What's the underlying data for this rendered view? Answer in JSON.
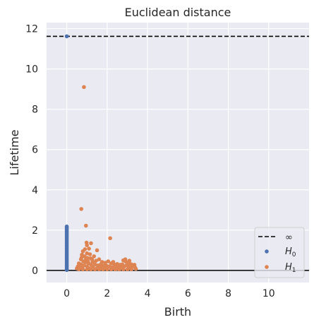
{
  "chart_data": {
    "type": "scatter",
    "title": "Euclidean distance",
    "xlabel": "Birth",
    "ylabel": "Lifetime",
    "xlim": [
      -1,
      12
    ],
    "ylim": [
      -0.6,
      12.3
    ],
    "xticks": [
      0,
      2,
      4,
      6,
      8,
      10
    ],
    "yticks": [
      0,
      2,
      4,
      6,
      8,
      10,
      12
    ],
    "xtick_labels": [
      "0",
      "2",
      "4",
      "6",
      "8",
      "10"
    ],
    "ytick_labels": [
      "0",
      "2",
      "4",
      "6",
      "8",
      "10",
      "12"
    ],
    "grid": true,
    "legend_position": "lower-right",
    "infinity_line": {
      "label": "∞",
      "y": 11.62,
      "style": "dashed",
      "color": "#000000"
    },
    "zero_line": {
      "y": 0,
      "color": "#000000"
    },
    "series": [
      {
        "name": "H0",
        "label_main": "H",
        "label_sub": "0",
        "color": "#4c72b0",
        "points": [
          [
            0,
            11.62
          ],
          [
            0,
            2.18
          ],
          [
            0,
            2.12
          ],
          [
            0,
            2.06
          ],
          [
            0,
            2.0
          ],
          [
            0,
            1.93
          ],
          [
            0,
            1.86
          ],
          [
            0,
            1.79
          ],
          [
            0,
            1.72
          ],
          [
            0,
            1.65
          ],
          [
            0,
            1.58
          ],
          [
            0,
            1.5
          ],
          [
            0,
            1.42
          ],
          [
            0,
            1.34
          ],
          [
            0,
            1.26
          ],
          [
            0,
            1.18
          ],
          [
            0,
            1.1
          ],
          [
            0,
            1.02
          ],
          [
            0,
            0.94
          ],
          [
            0,
            0.86
          ],
          [
            0,
            0.78
          ],
          [
            0,
            0.7
          ],
          [
            0,
            0.62
          ],
          [
            0,
            0.54
          ],
          [
            0,
            0.46
          ],
          [
            0,
            0.38
          ],
          [
            0,
            0.3
          ],
          [
            0,
            0.22
          ],
          [
            0,
            0.14
          ],
          [
            0,
            0.06
          ],
          [
            0,
            0.02
          ]
        ]
      },
      {
        "name": "H1",
        "label_main": "H",
        "label_sub": "1",
        "color": "#dd8452",
        "points": [
          [
            0.85,
            9.1
          ],
          [
            0.72,
            3.05
          ],
          [
            0.95,
            2.22
          ],
          [
            2.15,
            1.6
          ],
          [
            0.98,
            1.38
          ],
          [
            1.0,
            1.25
          ],
          [
            1.2,
            1.35
          ],
          [
            0.8,
            0.95
          ],
          [
            0.9,
            1.05
          ],
          [
            1.1,
            1.08
          ],
          [
            1.0,
            0.85
          ],
          [
            1.5,
            1.0
          ],
          [
            0.7,
            0.55
          ],
          [
            0.75,
            0.78
          ],
          [
            0.88,
            0.7
          ],
          [
            1.02,
            0.62
          ],
          [
            1.15,
            0.8
          ],
          [
            1.25,
            0.55
          ],
          [
            1.35,
            0.7
          ],
          [
            1.45,
            0.48
          ],
          [
            1.6,
            0.55
          ],
          [
            1.75,
            0.42
          ],
          [
            1.9,
            0.38
          ],
          [
            2.05,
            0.45
          ],
          [
            2.2,
            0.35
          ],
          [
            2.35,
            0.3
          ],
          [
            2.5,
            0.32
          ],
          [
            2.65,
            0.28
          ],
          [
            2.8,
            0.5
          ],
          [
            2.9,
            0.45
          ],
          [
            3.0,
            0.38
          ],
          [
            3.1,
            0.48
          ],
          [
            3.2,
            0.3
          ],
          [
            3.3,
            0.25
          ],
          [
            3.38,
            0.15
          ],
          [
            0.5,
            0.1
          ],
          [
            0.55,
            0.2
          ],
          [
            0.6,
            0.35
          ],
          [
            0.65,
            0.15
          ],
          [
            0.7,
            0.3
          ],
          [
            0.78,
            0.12
          ],
          [
            0.85,
            0.25
          ],
          [
            0.92,
            0.4
          ],
          [
            1.0,
            0.2
          ],
          [
            1.08,
            0.35
          ],
          [
            1.12,
            0.1
          ],
          [
            1.2,
            0.28
          ],
          [
            1.3,
            0.18
          ],
          [
            1.4,
            0.3
          ],
          [
            1.5,
            0.12
          ],
          [
            1.55,
            0.25
          ],
          [
            1.65,
            0.2
          ],
          [
            1.7,
            0.1
          ],
          [
            1.8,
            0.22
          ],
          [
            1.85,
            0.15
          ],
          [
            1.95,
            0.25
          ],
          [
            2.0,
            0.12
          ],
          [
            2.1,
            0.2
          ],
          [
            2.25,
            0.15
          ],
          [
            2.4,
            0.18
          ],
          [
            2.45,
            0.08
          ],
          [
            2.55,
            0.2
          ],
          [
            2.6,
            0.1
          ],
          [
            2.7,
            0.15
          ],
          [
            2.75,
            0.3
          ],
          [
            2.85,
            0.2
          ],
          [
            2.95,
            0.25
          ],
          [
            3.05,
            0.2
          ],
          [
            3.15,
            0.12
          ],
          [
            3.25,
            0.2
          ],
          [
            3.35,
            0.28
          ],
          [
            3.42,
            0.08
          ],
          [
            0.6,
            0.05
          ],
          [
            0.8,
            0.05
          ],
          [
            1.0,
            0.05
          ],
          [
            1.2,
            0.05
          ],
          [
            1.4,
            0.05
          ],
          [
            1.6,
            0.05
          ],
          [
            1.8,
            0.05
          ],
          [
            2.0,
            0.05
          ],
          [
            2.2,
            0.05
          ],
          [
            2.4,
            0.05
          ],
          [
            2.6,
            0.05
          ],
          [
            2.8,
            0.05
          ],
          [
            3.0,
            0.05
          ],
          [
            3.2,
            0.05
          ],
          [
            0.95,
            0.55
          ],
          [
            1.05,
            0.45
          ],
          [
            0.82,
            0.45
          ],
          [
            1.18,
            0.6
          ],
          [
            1.28,
            0.42
          ],
          [
            0.74,
            0.65
          ],
          [
            2.9,
            0.55
          ],
          [
            3.1,
            0.35
          ],
          [
            2.3,
            0.42
          ],
          [
            1.7,
            0.32
          ]
        ]
      }
    ]
  }
}
